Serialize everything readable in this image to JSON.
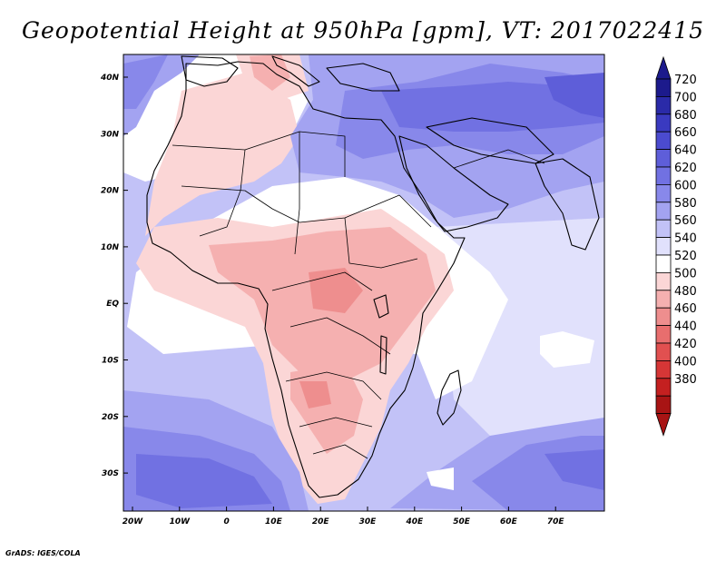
{
  "title": "Geopotential Height at 950hPa [gpm], VT: 2017022415",
  "footer": "GrADS: IGES/COLA",
  "lon_labels": [
    "20W",
    "10W",
    "0",
    "10E",
    "20E",
    "30E",
    "40E",
    "50E",
    "60E",
    "70E"
  ],
  "lat_labels": [
    "40N",
    "30N",
    "20N",
    "10N",
    "EQ",
    "10S",
    "20S",
    "30S"
  ],
  "colorbar": {
    "labels": [
      "720",
      "700",
      "680",
      "660",
      "640",
      "620",
      "600",
      "580",
      "560",
      "540",
      "520",
      "500",
      "480",
      "460",
      "440",
      "420",
      "400",
      "380"
    ],
    "colors": [
      "#1c1a8c",
      "#2a2aa8",
      "#3a3ac0",
      "#4b4bcf",
      "#5e5ed9",
      "#7171e2",
      "#8888ea",
      "#a3a3f1",
      "#c2c2f7",
      "#e1e1fc",
      "#ffffff",
      "#fbd6d6",
      "#f5b0b0",
      "#ee8e8e",
      "#e86e6e",
      "#e15050",
      "#d63636",
      "#c42020",
      "#a81414"
    ],
    "top_arrow_color": "#1c1a8c",
    "bottom_arrow_color": "#a81414"
  },
  "field_colors": {
    "high": "#7c7ce4",
    "very_high": "#5e5ed9",
    "mid_high": "#a3a3f1",
    "mid": "#c2c2f7",
    "neutral": "#ffffff",
    "low": "#fbd6d6",
    "lower": "#f5b0b0",
    "lowest": "#ee8e8e"
  }
}
